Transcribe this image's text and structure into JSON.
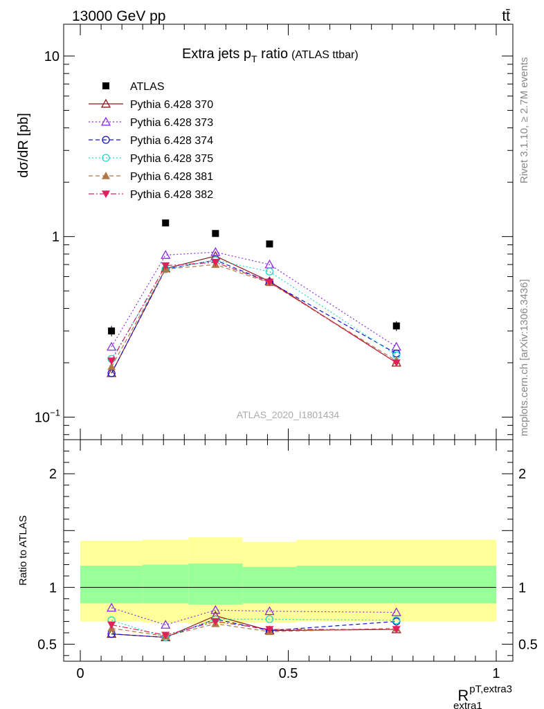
{
  "header": {
    "energy": "13000 GeV pp",
    "process": "tt̄",
    "side_rivet": "Rivet 3.1.10, ≥ 2.7M events",
    "side_mcplots": "mcplots.cern.ch [arXiv:1306.3436]"
  },
  "chart_data": [
    {
      "type": "line",
      "panel": "main",
      "title": "Extra jets p",
      "title_sub": "T",
      "title_tail": " ratio",
      "title_small": "(ATLAS ttbar)",
      "analysis": "ATLAS_2020_I1801434",
      "ylabel": "dσ/dR [pb]",
      "yscale": "log",
      "ylim": [
        0.075,
        15
      ],
      "xlim": [
        -0.04,
        1.04
      ],
      "ytick_labels": {
        "e-1": "10",
        "e-1_sup": "−1",
        "one": "1",
        "ten": "10"
      },
      "legend_position": "top-left",
      "x": [
        0.075,
        0.205,
        0.325,
        0.455,
        0.76
      ],
      "series": [
        {
          "name": "ATLAS",
          "color": "#000000",
          "marker": "square",
          "values": [
            0.3,
            1.19,
            1.04,
            0.91,
            0.32
          ],
          "errors": [
            0.02,
            0.05,
            0.04,
            0.04,
            0.02
          ]
        },
        {
          "name": "Pythia 6.428 370",
          "color": "#8b1a1a",
          "marker": "triangle-open",
          "dash": "",
          "values": [
            0.175,
            0.665,
            0.78,
            0.565,
            0.2
          ]
        },
        {
          "name": "Pythia 6.428 373",
          "color": "#8a2be2",
          "marker": "triangle-open",
          "dash": "2,3",
          "values": [
            0.245,
            0.79,
            0.82,
            0.7,
            0.245
          ]
        },
        {
          "name": "Pythia 6.428 374",
          "color": "#1010d0",
          "marker": "circle-open",
          "dash": "6,4",
          "values": [
            0.175,
            0.66,
            0.74,
            0.56,
            0.225
          ]
        },
        {
          "name": "Pythia 6.428 375",
          "color": "#20d8c8",
          "marker": "circle-open",
          "dash": "2,3",
          "values": [
            0.21,
            0.66,
            0.74,
            0.64,
            0.22
          ]
        },
        {
          "name": "Pythia 6.428 381",
          "color": "#b07848",
          "marker": "triangle-filled",
          "dash": "6,4",
          "values": [
            0.19,
            0.66,
            0.7,
            0.555,
            0.205
          ]
        },
        {
          "name": "Pythia 6.428 382",
          "color": "#e0205a",
          "marker": "triangle-down-filled",
          "dash": "8,3,2,3",
          "values": [
            0.205,
            0.69,
            0.72,
            0.56,
            0.2
          ]
        }
      ]
    },
    {
      "type": "line",
      "panel": "ratio",
      "ylabel": "Ratio to ATLAS",
      "xlabel": "R",
      "xlabel_sup": "pT,extra3",
      "xlabel_sub": "extra1",
      "ylim": [
        0.35,
        2.3
      ],
      "xlim": [
        -0.04,
        1.04
      ],
      "yticks": [
        0.5,
        1,
        2
      ],
      "ytick_labels": [
        "0.5",
        "1",
        "2"
      ],
      "xticks": [
        0,
        0.5,
        1
      ],
      "xtick_labels": [
        "0",
        "0.5",
        "1"
      ],
      "bands": {
        "edges": [
          0,
          0.15,
          0.26,
          0.39,
          0.52,
          1.0
        ],
        "yellow_lo": [
          0.7,
          0.69,
          0.68,
          0.69,
          0.7
        ],
        "yellow_hi": [
          1.41,
          1.42,
          1.44,
          1.4,
          1.42
        ],
        "green_lo": [
          0.86,
          0.86,
          0.85,
          0.86,
          0.86
        ],
        "green_hi": [
          1.19,
          1.2,
          1.21,
          1.18,
          1.19
        ],
        "yellow_color": "#ffff99",
        "green_color": "#99ff99"
      },
      "x": [
        0.075,
        0.205,
        0.325,
        0.455,
        0.76
      ],
      "series": [
        {
          "name": "Pythia 6.428 370",
          "values": [
            0.59,
            0.56,
            0.75,
            0.62,
            0.63
          ]
        },
        {
          "name": "Pythia 6.428 373",
          "values": [
            0.82,
            0.67,
            0.8,
            0.79,
            0.78
          ]
        },
        {
          "name": "Pythia 6.428 374",
          "values": [
            0.59,
            0.56,
            0.72,
            0.62,
            0.7
          ]
        },
        {
          "name": "Pythia 6.428 375",
          "values": [
            0.71,
            0.56,
            0.72,
            0.72,
            0.71
          ]
        },
        {
          "name": "Pythia 6.428 381",
          "values": [
            0.64,
            0.57,
            0.68,
            0.61,
            0.64
          ]
        },
        {
          "name": "Pythia 6.428 382",
          "values": [
            0.67,
            0.58,
            0.7,
            0.63,
            0.63
          ]
        }
      ]
    }
  ]
}
